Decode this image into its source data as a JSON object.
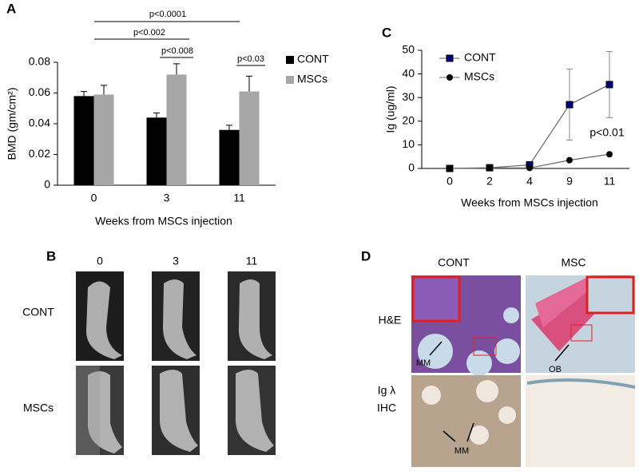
{
  "chart_data": [
    {
      "type": "bar",
      "panel": "A",
      "categories": [
        "0",
        "3",
        "11"
      ],
      "series": [
        {
          "name": "CONT",
          "color": "#000000",
          "values": [
            0.058,
            0.044,
            0.036
          ],
          "errors": [
            0.003,
            0.003,
            0.003
          ]
        },
        {
          "name": "MSCs",
          "color": "#a6a6a6",
          "values": [
            0.059,
            0.072,
            0.061
          ],
          "errors": [
            0.006,
            0.007,
            0.01
          ]
        }
      ],
      "ylim": [
        0,
        0.08
      ],
      "yticks": [
        0,
        0.02,
        0.04,
        0.06,
        0.08
      ],
      "ylabel": "BMD (gm/cm²)",
      "xlabel": "Weeks from MSCs injection",
      "annotations": [
        "p<0.0001",
        "p<0.002",
        "p<0.008",
        "p<0.03"
      ]
    },
    {
      "type": "line",
      "panel": "C",
      "categories": [
        "0",
        "2",
        "4",
        "9",
        "11"
      ],
      "series": [
        {
          "name": "CONT",
          "color": "#000080",
          "values": [
            0,
            0.3,
            1.5,
            27,
            35.5
          ],
          "errors": [
            0,
            0,
            0,
            15,
            14
          ]
        },
        {
          "name": "MSCs",
          "color": "#000000",
          "values": [
            0,
            0.2,
            0.2,
            3.5,
            6
          ]
        }
      ],
      "ylim": [
        0,
        50
      ],
      "yticks": [
        0,
        10,
        20,
        30,
        40,
        50
      ],
      "ylabel": "Ig (ug/ml)",
      "xlabel": "Weeks from MSCs injection",
      "annotations": [
        "p<0.01"
      ]
    }
  ],
  "panel_b": {
    "label": "B",
    "columns": [
      "0",
      "3",
      "11"
    ],
    "rows": [
      "CONT",
      "MSCs"
    ]
  },
  "panel_d": {
    "label": "D",
    "columns": [
      "CONT",
      "MSC"
    ],
    "rows": [
      "H&E",
      "Ig λ",
      "IHC"
    ],
    "annotations": [
      "MM",
      "OB",
      "MM"
    ]
  }
}
